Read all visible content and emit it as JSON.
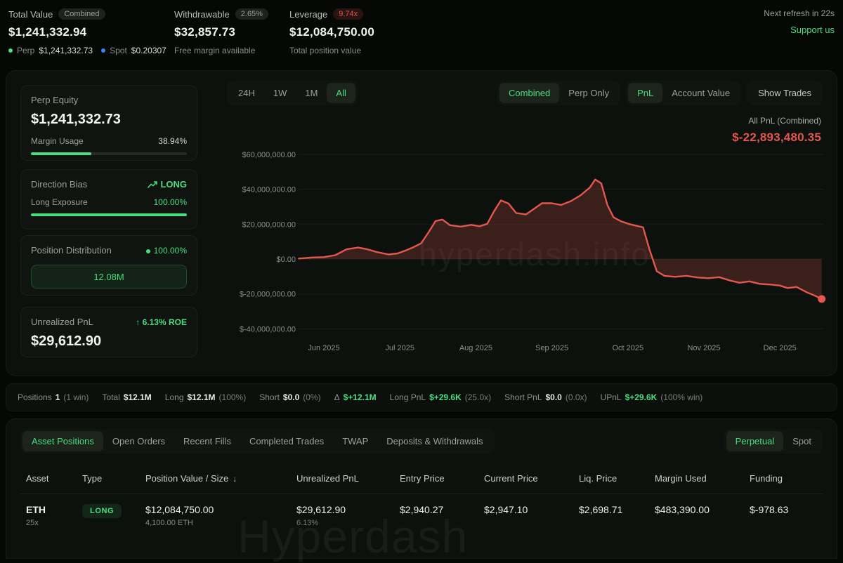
{
  "colors": {
    "accent": "#4ade80",
    "negative": "#e2564d",
    "chart_line": "#e4574e",
    "spot_dot": "#3b82f6"
  },
  "topbar": {
    "total_value": {
      "label": "Total Value",
      "badge": "Combined",
      "value": "$1,241,332.94",
      "perp_label": "Perp",
      "perp_value": "$1,241,332.73",
      "spot_label": "Spot",
      "spot_value": "$0.20307"
    },
    "withdrawable": {
      "label": "Withdrawable",
      "badge": "2.65%",
      "value": "$32,857.73",
      "sub": "Free margin available"
    },
    "leverage": {
      "label": "Leverage",
      "badge": "9.74x",
      "value": "$12,084,750.00",
      "sub": "Total position value"
    },
    "refresh": "Next refresh in 22s",
    "support": "Support us"
  },
  "sidebar": {
    "perp_equity": {
      "label": "Perp Equity",
      "value": "$1,241,332.73",
      "margin_usage_label": "Margin Usage",
      "margin_usage_value": "38.94%",
      "margin_usage_pct": 38.94
    },
    "direction_bias": {
      "label": "Direction Bias",
      "value": "LONG",
      "long_exposure_label": "Long Exposure",
      "long_exposure_value": "100.00%",
      "long_exposure_pct": 100
    },
    "position_distribution": {
      "label": "Position Distribution",
      "value": "100.00%",
      "bar_label": "12.08M"
    },
    "unrealized_pnl": {
      "label": "Unrealized PnL",
      "roe": "6.13% ROE",
      "value": "$29,612.90"
    }
  },
  "chart": {
    "range_tabs": [
      "24H",
      "1W",
      "1M",
      "All"
    ],
    "active_range": "All",
    "mode_tabs": [
      "Combined",
      "Perp Only"
    ],
    "active_mode": "Combined",
    "metric_tabs": [
      "PnL",
      "Account Value"
    ],
    "active_metric": "PnL",
    "show_trades": "Show Trades",
    "summary_label": "All PnL (Combined)",
    "summary_value": "$-22,893,480.35"
  },
  "chart_data": {
    "type": "area",
    "title": "All PnL (Combined)",
    "y_unit": "USD millions",
    "x_tick_labels": [
      "Jun 2025",
      "Jul 2025",
      "Aug 2025",
      "Sep 2025",
      "Oct 2025",
      "Nov 2025",
      "Dec 2025"
    ],
    "x_tick_positions": [
      0,
      1,
      2,
      3,
      4,
      5,
      6
    ],
    "y_tick_labels": [
      "$60,000,000.00",
      "$40,000,000.00",
      "$20,000,000.00",
      "$0.00",
      "$-20,000,000.00",
      "$-40,000,000.00"
    ],
    "y_tick_values": [
      60,
      40,
      20,
      0,
      -20,
      -40
    ],
    "x_range": [
      -0.33,
      6.55
    ],
    "ylim": [
      -48,
      68
    ],
    "grid": true,
    "line_color": "#e4574e",
    "fill_color": "rgba(224,82,75,0.22)",
    "last_value_label": "$-22,893,480.35",
    "points": [
      [
        -0.33,
        0.3
      ],
      [
        -0.15,
        0.9
      ],
      [
        0,
        1.1
      ],
      [
        0.15,
        2.2
      ],
      [
        0.3,
        5.6
      ],
      [
        0.45,
        6.6
      ],
      [
        0.57,
        5.6
      ],
      [
        0.7,
        4
      ],
      [
        0.85,
        2.6
      ],
      [
        0.97,
        3.2
      ],
      [
        1.08,
        5
      ],
      [
        1.18,
        6.8
      ],
      [
        1.28,
        9
      ],
      [
        1.38,
        15.5
      ],
      [
        1.47,
        21.8
      ],
      [
        1.56,
        22.6
      ],
      [
        1.66,
        19.4
      ],
      [
        1.8,
        18.6
      ],
      [
        1.94,
        19.6
      ],
      [
        2.05,
        18.8
      ],
      [
        2.15,
        20.2
      ],
      [
        2.24,
        27.5
      ],
      [
        2.33,
        33.6
      ],
      [
        2.43,
        31.8
      ],
      [
        2.53,
        26.4
      ],
      [
        2.66,
        25.6
      ],
      [
        2.76,
        28.6
      ],
      [
        2.87,
        32
      ],
      [
        3,
        32
      ],
      [
        3.12,
        31
      ],
      [
        3.25,
        33.2
      ],
      [
        3.38,
        36.6
      ],
      [
        3.5,
        41
      ],
      [
        3.57,
        45.6
      ],
      [
        3.65,
        43.4
      ],
      [
        3.73,
        31
      ],
      [
        3.81,
        24
      ],
      [
        3.91,
        21.6
      ],
      [
        4.02,
        20
      ],
      [
        4.12,
        19
      ],
      [
        4.2,
        18.2
      ],
      [
        4.28,
        6
      ],
      [
        4.38,
        -7
      ],
      [
        4.48,
        -9.6
      ],
      [
        4.62,
        -10.2
      ],
      [
        4.77,
        -9.6
      ],
      [
        4.92,
        -10.6
      ],
      [
        5.06,
        -11
      ],
      [
        5.2,
        -10.4
      ],
      [
        5.35,
        -12.4
      ],
      [
        5.47,
        -13.6
      ],
      [
        5.6,
        -12.8
      ],
      [
        5.73,
        -14.2
      ],
      [
        5.87,
        -14.6
      ],
      [
        6,
        -15.2
      ],
      [
        6.1,
        -16.6
      ],
      [
        6.22,
        -16
      ],
      [
        6.35,
        -19
      ],
      [
        6.46,
        -21
      ],
      [
        6.55,
        -22.9
      ]
    ]
  },
  "positions_summary": {
    "items": [
      {
        "label": "Positions",
        "value": "1",
        "suffix": "(1 win)"
      },
      {
        "label": "Total",
        "value": "$12.1M"
      },
      {
        "label": "Long",
        "value": "$12.1M",
        "suffix": "(100%)"
      },
      {
        "label": "Short",
        "value": "$0.0",
        "suffix": "(0%)"
      },
      {
        "label": "Δ",
        "value": "$+12.1M"
      },
      {
        "label": "Long PnL",
        "value": "$+29.6K",
        "suffix": "(25.0x)"
      },
      {
        "label": "Short PnL",
        "value": "$0.0",
        "suffix": "(0.0x)"
      },
      {
        "label": "UPnL",
        "value": "$+29.6K",
        "suffix": "(100% win)"
      }
    ]
  },
  "bottom": {
    "tabs": [
      "Asset Positions",
      "Open Orders",
      "Recent Fills",
      "Completed Trades",
      "TWAP",
      "Deposits & Withdrawals"
    ],
    "active_tab": "Asset Positions",
    "market_tabs": [
      "Perpetual",
      "Spot"
    ],
    "active_market": "Perpetual",
    "table": {
      "headers": [
        "Asset",
        "Type",
        "Position Value / Size",
        "Unrealized PnL",
        "Entry Price",
        "Current Price",
        "Liq. Price",
        "Margin Used",
        "Funding"
      ],
      "sort_column": "Position Value / Size",
      "rows": [
        {
          "asset": "ETH",
          "leverage": "25x",
          "type": "LONG",
          "value": "$12,084,750.00",
          "size": "4,100.00 ETH",
          "upnl": "$29,612.90",
          "upnl_pct": "6.13%",
          "entry": "$2,940.27",
          "current": "$2,947.10",
          "liq": "$2,698.71",
          "margin": "$483,390.00",
          "funding": "$-978.63"
        }
      ]
    }
  },
  "watermarks": {
    "chart": "hyperdash.info",
    "page": "Hyperdash"
  }
}
